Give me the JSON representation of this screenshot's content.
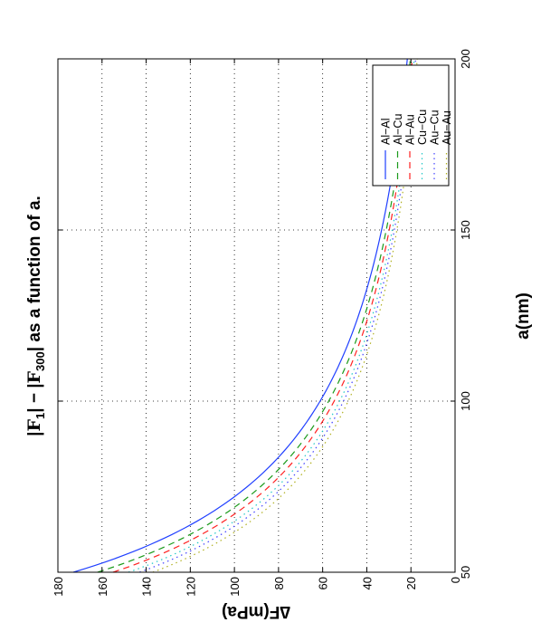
{
  "chart_data": {
    "type": "line",
    "title_parts": [
      "|",
      "F",
      "1",
      "| − |",
      "F",
      "300",
      "| as a function of a."
    ],
    "xlabel": "a(nm)",
    "ylabel": "∆F(mPa)",
    "xlim": [
      50,
      200
    ],
    "ylim": [
      0,
      180
    ],
    "xticks": [
      50,
      100,
      150,
      200
    ],
    "yticks": [
      0,
      20,
      40,
      60,
      80,
      100,
      120,
      140,
      160,
      180
    ],
    "grid": true,
    "legend_position": "top-right",
    "orientation": "rotated 90° counter-clockwise",
    "series": [
      {
        "name": "Al−Al",
        "color": "#1f3fff",
        "style": "solid",
        "anchor": [
          50,
          173
        ]
      },
      {
        "name": "Al−Cu",
        "color": "#1a9a1a",
        "style": "dashed",
        "anchor": [
          50,
          162
        ]
      },
      {
        "name": "Al−Au",
        "color": "#ff2020",
        "style": "dashed",
        "anchor": [
          50,
          155
        ]
      },
      {
        "name": "Cu−Cu",
        "color": "#20c8c8",
        "style": "dotted",
        "anchor": [
          50,
          148
        ]
      },
      {
        "name": "Au−Cu",
        "color": "#4040ff",
        "style": "dotted",
        "anchor": [
          50,
          143
        ]
      },
      {
        "name": "Au−Au",
        "color": "#b0b020",
        "style": "dotted",
        "anchor": [
          50,
          137
        ]
      }
    ]
  }
}
